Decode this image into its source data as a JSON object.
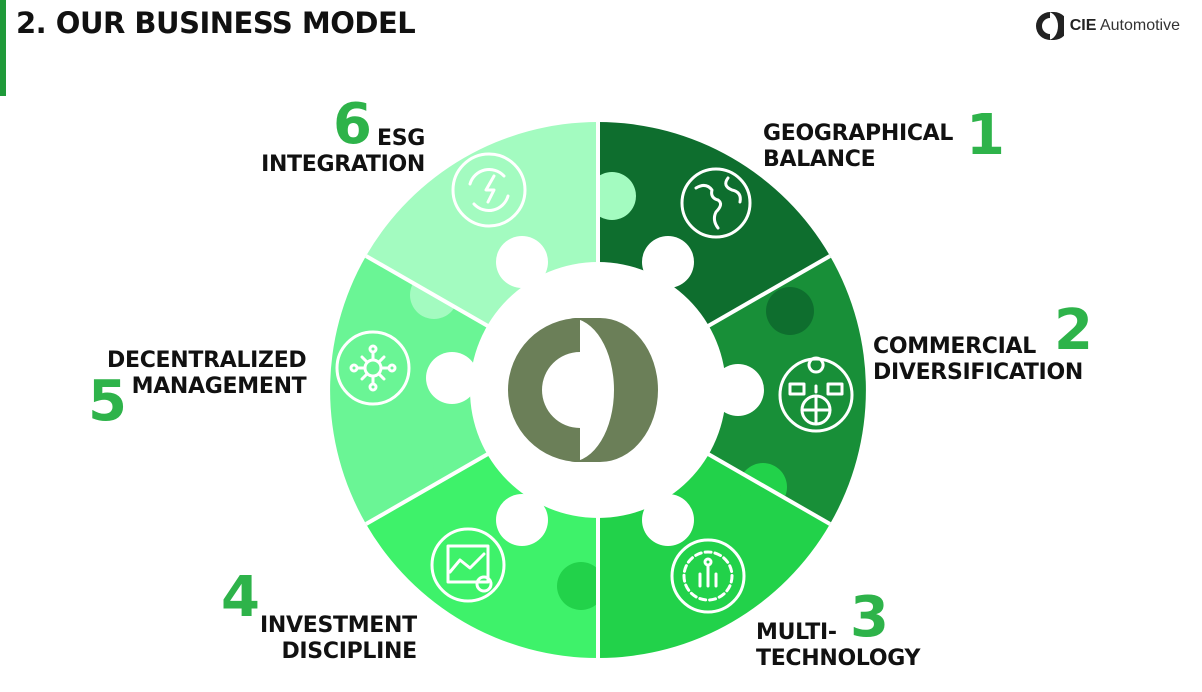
{
  "header": {
    "title": "2. OUR BUSINESS MODEL",
    "logo_bold": "CIE",
    "logo_light": "Automotive"
  },
  "colors": {
    "accent": "#1f9a3a",
    "number": "#2eb34a",
    "piece_1": "#0e6e2e",
    "piece_2": "#188f38",
    "piece_3": "#22d24a",
    "piece_4": "#3ef26a",
    "piece_5": "#6af595",
    "piece_6": "#a3fbc0",
    "center_logo": "#6b7f58"
  },
  "pillars": [
    {
      "number": "1",
      "line1": "GEOGRAPHICAL",
      "line2": "BALANCE",
      "icon": "globe-icon"
    },
    {
      "number": "2",
      "line1": "COMMERCIAL",
      "line2": "DIVERSIFICATION",
      "icon": "globe-location-chat-icon"
    },
    {
      "number": "3",
      "line1": "MULTI-",
      "line2": "TECHNOLOGY",
      "icon": "gear-chip-icon"
    },
    {
      "number": "4",
      "line1": "INVESTMENT",
      "line2": "DISCIPLINE",
      "icon": "chart-check-icon"
    },
    {
      "number": "5",
      "line1": "DECENTRALIZED",
      "line2": "MANAGEMENT",
      "icon": "network-hub-icon"
    },
    {
      "number": "6",
      "line1": "ESG",
      "line2": "INTEGRATION",
      "icon": "energy-cycle-icon"
    }
  ]
}
